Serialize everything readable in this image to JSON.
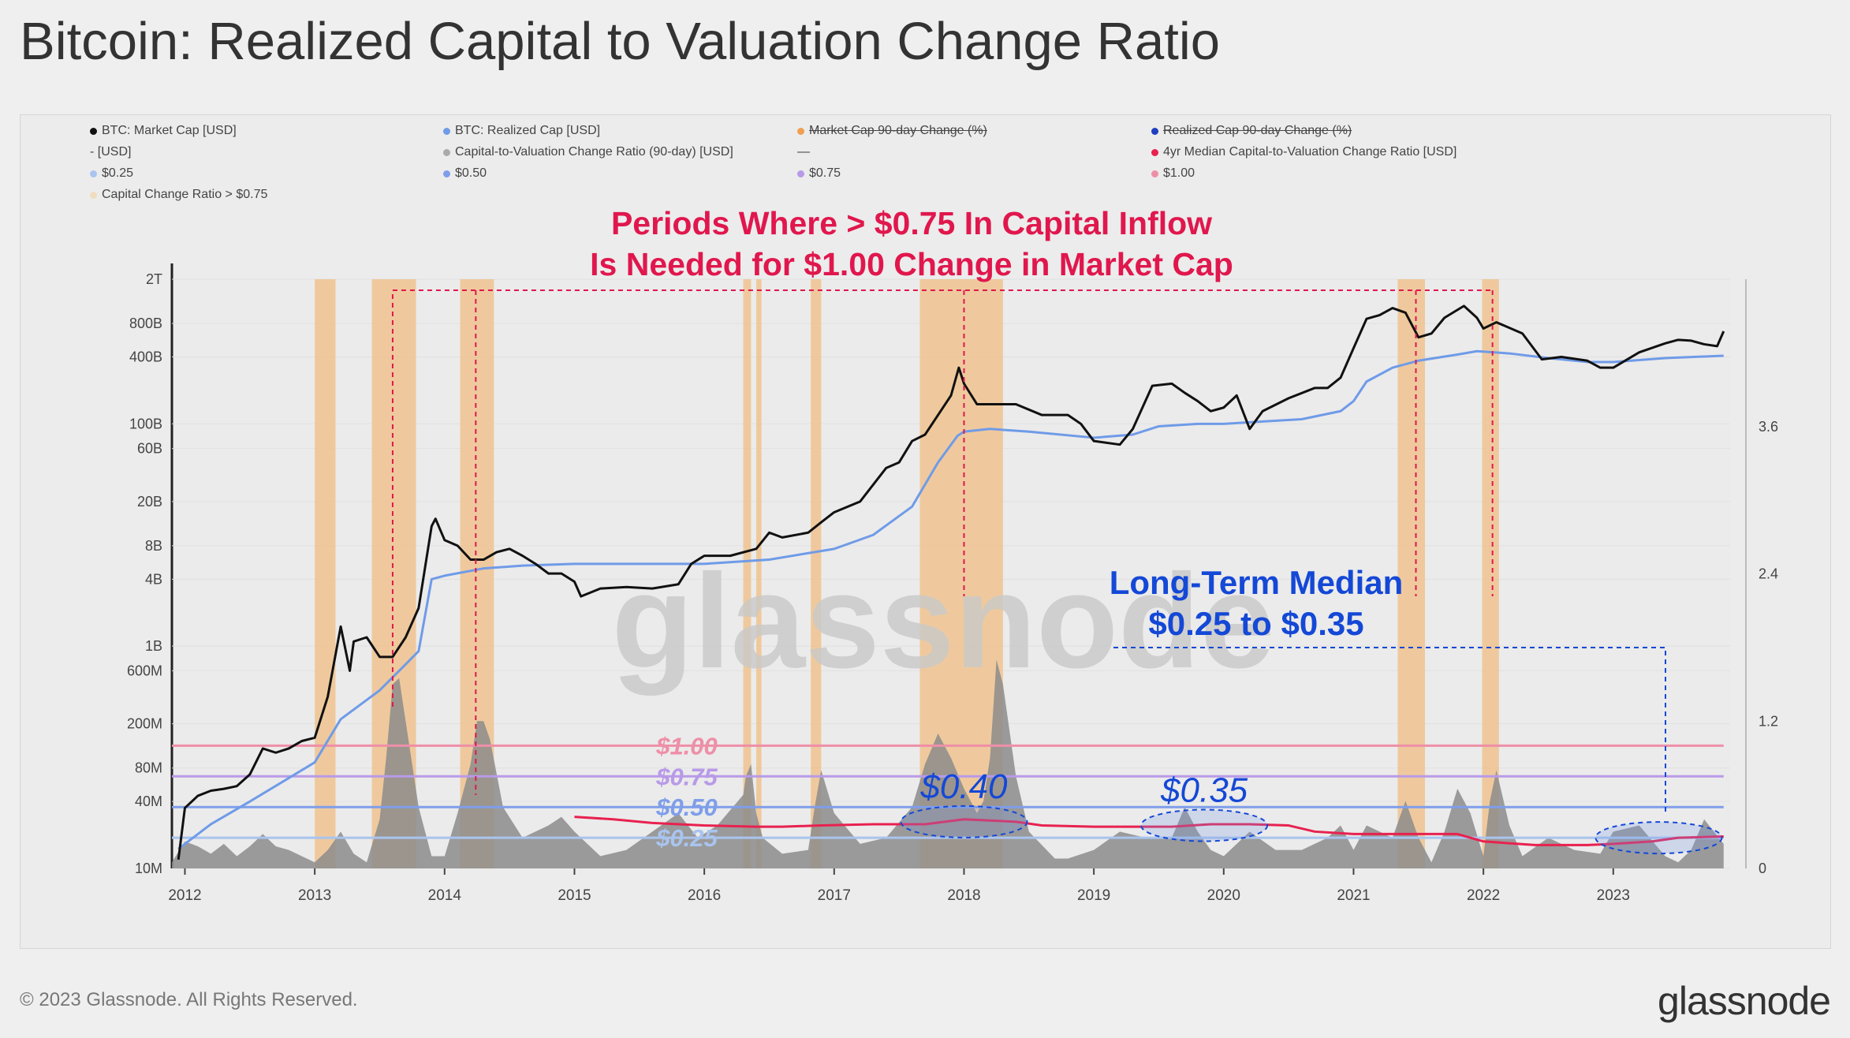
{
  "title": "Bitcoin: Realized Capital to Valuation Change Ratio",
  "footer": {
    "copyright": "© 2023 Glassnode. All Rights Reserved.",
    "logo": "glassnode"
  },
  "watermark": "glassnode",
  "colors": {
    "market_cap": "#111111",
    "realized_cap": "#6f9be8",
    "ratio_fill": "#8c8c8c",
    "median": "#e8214f",
    "band_025": "#a9c4ee",
    "band_050": "#7f9eea",
    "band_075": "#b89ae8",
    "band_100": "#ee8fa8",
    "highlight": "#f0c08a",
    "annotation_red": "#e0174d",
    "annotation_blue": "#1448d6"
  },
  "legend": [
    {
      "label": "BTC: Market Cap [USD]",
      "color": "#111111",
      "struck": false
    },
    {
      "label": "BTC: Realized Cap [USD]",
      "color": "#6f9be8",
      "struck": false
    },
    {
      "label": "Market Cap 90-day Change (%)",
      "color": "#f0a050",
      "struck": true
    },
    {
      "label": "Realized Cap 90-day Change (%)",
      "color": "#2040c0",
      "struck": true
    },
    {
      "label": "- [USD]",
      "color": "",
      "struck": false
    },
    {
      "label": "Capital-to-Valuation Change Ratio (90-day) [USD]",
      "color": "#aaaaaa",
      "struck": false
    },
    {
      "label": "—",
      "color": "",
      "struck": false
    },
    {
      "label": "4yr Median Capital-to-Valuation Change Ratio [USD]",
      "color": "#e8214f",
      "struck": false
    },
    {
      "label": "$0.25",
      "color": "#a9c4ee",
      "struck": false
    },
    {
      "label": "$0.50",
      "color": "#7f9eea",
      "struck": false
    },
    {
      "label": "$0.75",
      "color": "#b89ae8",
      "struck": false
    },
    {
      "label": "$1.00",
      "color": "#ee8fa8",
      "struck": false
    },
    {
      "label": "Capital Change Ratio > $0.75",
      "color": "#f0dcc0",
      "struck": false
    }
  ],
  "annotations": {
    "red_line1": "Periods Where > $0.75 In Capital Inflow",
    "red_line2": "Is Needed for $1.00 Change in Market Cap",
    "blue_line1": "Long-Term Median",
    "blue_line2": "$0.25 to $0.35",
    "label_040": "$0.40",
    "label_035": "$0.35",
    "band_labels": [
      "$1.00",
      "$0.75",
      "$0.50",
      "$0.25"
    ]
  },
  "chart_data": {
    "type": "line",
    "x_axis": {
      "ticks": [
        "2012",
        "2013",
        "2014",
        "2015",
        "2016",
        "2017",
        "2018",
        "2019",
        "2020",
        "2021",
        "2022",
        "2023"
      ],
      "range": [
        2011.9,
        2023.9
      ]
    },
    "y_left": {
      "scale": "log",
      "unit": "USD",
      "ticks": [
        "10M",
        "40M",
        "80M",
        "200M",
        "600M",
        "1B",
        "4B",
        "8B",
        "20B",
        "60B",
        "100B",
        "400B",
        "800B",
        "2T"
      ],
      "range": [
        10000000,
        2000000000000
      ]
    },
    "y_right": {
      "scale": "linear",
      "unit": "USD",
      "ticks": [
        "0",
        "1.2",
        "2.4",
        "3.6"
      ],
      "range": [
        0,
        4.8
      ]
    },
    "series": [
      {
        "name": "BTC: Market Cap [USD]",
        "axis": "left",
        "x": [
          2011.95,
          2012.0,
          2012.1,
          2012.2,
          2012.3,
          2012.4,
          2012.5,
          2012.6,
          2012.7,
          2012.8,
          2012.9,
          2013.0,
          2013.1,
          2013.2,
          2013.27,
          2013.3,
          2013.4,
          2013.5,
          2013.6,
          2013.7,
          2013.8,
          2013.9,
          2013.93,
          2014.0,
          2014.1,
          2014.2,
          2014.3,
          2014.4,
          2014.5,
          2014.6,
          2014.7,
          2014.8,
          2014.9,
          2015.0,
          2015.05,
          2015.2,
          2015.4,
          2015.6,
          2015.8,
          2015.9,
          2016.0,
          2016.2,
          2016.4,
          2016.5,
          2016.6,
          2016.8,
          2016.9,
          2017.0,
          2017.2,
          2017.4,
          2017.5,
          2017.6,
          2017.7,
          2017.8,
          2017.9,
          2017.96,
          2018.0,
          2018.1,
          2018.2,
          2018.4,
          2018.6,
          2018.8,
          2018.9,
          2019.0,
          2019.2,
          2019.3,
          2019.45,
          2019.6,
          2019.7,
          2019.8,
          2019.9,
          2020.0,
          2020.1,
          2020.2,
          2020.3,
          2020.5,
          2020.7,
          2020.8,
          2020.9,
          2021.0,
          2021.1,
          2021.2,
          2021.3,
          2021.4,
          2021.5,
          2021.6,
          2021.7,
          2021.85,
          2021.95,
          2022.0,
          2022.1,
          2022.3,
          2022.45,
          2022.6,
          2022.8,
          2022.9,
          2023.0,
          2023.2,
          2023.4,
          2023.5,
          2023.6,
          2023.7,
          2023.8,
          2023.85
        ],
        "y": [
          12000000.0,
          35000000.0,
          45000000.0,
          50000000.0,
          52000000.0,
          55000000.0,
          70000000.0,
          120000000.0,
          110000000.0,
          120000000.0,
          140000000.0,
          150000000.0,
          350000000.0,
          1500000000.0,
          600000000.0,
          1100000000.0,
          1200000000.0,
          800000000.0,
          800000000.0,
          1200000000.0,
          2200000000.0,
          12000000000.0,
          14000000000.0,
          9000000000.0,
          8000000000.0,
          6000000000.0,
          6000000000.0,
          7000000000.0,
          7500000000.0,
          6500000000.0,
          5500000000.0,
          4500000000.0,
          4500000000.0,
          3800000000.0,
          2800000000.0,
          3300000000.0,
          3400000000.0,
          3300000000.0,
          3600000000.0,
          5500000000.0,
          6500000000.0,
          6500000000.0,
          7500000000.0,
          10500000000.0,
          9500000000.0,
          10500000000.0,
          13000000000.0,
          16000000000.0,
          20000000000.0,
          40000000000.0,
          45000000000.0,
          70000000000.0,
          80000000000.0,
          120000000000.0,
          180000000000.0,
          320000000000.0,
          230000000000.0,
          150000000000.0,
          150000000000.0,
          150000000000.0,
          120000000000.0,
          120000000000.0,
          100000000000.0,
          70000000000.0,
          65000000000.0,
          90000000000.0,
          220000000000.0,
          230000000000.0,
          190000000000.0,
          160000000000.0,
          130000000000.0,
          140000000000.0,
          180000000000.0,
          90000000000.0,
          130000000000.0,
          170000000000.0,
          210000000000.0,
          210000000000.0,
          260000000000.0,
          480000000000.0,
          880000000000.0,
          950000000000.0,
          1100000000000.0,
          1000000000000.0,
          600000000000.0,
          650000000000.0,
          900000000000.0,
          1150000000000.0,
          900000000000.0,
          720000000000.0,
          820000000000.0,
          650000000000.0,
          380000000000.0,
          400000000000.0,
          370000000000.0,
          320000000000.0,
          320000000000.0,
          440000000000.0,
          530000000000.0,
          570000000000.0,
          560000000000.0,
          520000000000.0,
          500000000000.0,
          680000000000.0
        ]
      },
      {
        "name": "BTC: Realized Cap [USD]",
        "axis": "left",
        "x": [
          2011.95,
          2012.2,
          2012.5,
          2012.8,
          2013.0,
          2013.2,
          2013.5,
          2013.8,
          2013.9,
          2014.0,
          2014.3,
          2014.6,
          2015.0,
          2015.5,
          2016.0,
          2016.5,
          2017.0,
          2017.3,
          2017.6,
          2017.8,
          2017.95,
          2018.0,
          2018.2,
          2018.5,
          2019.0,
          2019.3,
          2019.5,
          2019.8,
          2020.0,
          2020.3,
          2020.6,
          2020.9,
          2021.0,
          2021.1,
          2021.3,
          2021.5,
          2021.8,
          2021.95,
          2022.2,
          2022.5,
          2022.8,
          2023.0,
          2023.4,
          2023.85
        ],
        "y": [
          15000000.0,
          25000000.0,
          40000000.0,
          65000000.0,
          90000000.0,
          220000000.0,
          400000000.0,
          900000000.0,
          4000000000.0,
          4300000000.0,
          5000000000.0,
          5300000000.0,
          5500000000.0,
          5500000000.0,
          5500000000.0,
          6000000000.0,
          7500000000.0,
          10000000000.0,
          18000000000.0,
          45000000000.0,
          78000000000.0,
          85000000000.0,
          90000000000.0,
          85000000000.0,
          75000000000.0,
          80000000000.0,
          95000000000.0,
          100000000000.0,
          100000000000.0,
          105000000000.0,
          110000000000.0,
          130000000000.0,
          160000000000.0,
          240000000000.0,
          320000000000.0,
          370000000000.0,
          420000000000.0,
          450000000000.0,
          430000000000.0,
          390000000000.0,
          360000000000.0,
          360000000000.0,
          390000000000.0,
          410000000000.0
        ]
      },
      {
        "name": "Capital-to-Valuation Change Ratio (90-day) [USD]",
        "axis": "right",
        "x": [
          2011.9,
          2012.0,
          2012.1,
          2012.2,
          2012.3,
          2012.4,
          2012.5,
          2012.6,
          2012.7,
          2012.8,
          2012.9,
          2013.0,
          2013.1,
          2013.2,
          2013.3,
          2013.4,
          2013.5,
          2013.55,
          2013.6,
          2013.65,
          2013.7,
          2013.8,
          2013.9,
          2014.0,
          2014.1,
          2014.2,
          2014.25,
          2014.3,
          2014.35,
          2014.45,
          2014.6,
          2014.8,
          2014.9,
          2015.0,
          2015.2,
          2015.4,
          2015.6,
          2015.8,
          2015.95,
          2016.1,
          2016.3,
          2016.32,
          2016.36,
          2016.4,
          2016.45,
          2016.6,
          2016.8,
          2016.85,
          2016.9,
          2017.0,
          2017.2,
          2017.4,
          2017.6,
          2017.7,
          2017.8,
          2017.9,
          2018.0,
          2018.1,
          2018.15,
          2018.2,
          2018.25,
          2018.3,
          2018.4,
          2018.5,
          2018.7,
          2018.8,
          2019.0,
          2019.2,
          2019.4,
          2019.6,
          2019.7,
          2019.8,
          2019.9,
          2020.0,
          2020.2,
          2020.4,
          2020.6,
          2020.8,
          2020.9,
          2021.0,
          2021.1,
          2021.3,
          2021.4,
          2021.5,
          2021.6,
          2021.7,
          2021.8,
          2021.9,
          2022.0,
          2022.05,
          2022.1,
          2022.2,
          2022.3,
          2022.5,
          2022.7,
          2022.9,
          2023.0,
          2023.2,
          2023.4,
          2023.5,
          2023.6,
          2023.7,
          2023.85
        ],
        "y": [
          0.05,
          0.22,
          0.18,
          0.12,
          0.2,
          0.1,
          0.18,
          0.28,
          0.18,
          0.15,
          0.1,
          0.05,
          0.15,
          0.3,
          0.12,
          0.05,
          0.4,
          0.9,
          1.5,
          1.55,
          1.2,
          0.5,
          0.1,
          0.1,
          0.45,
          0.85,
          1.2,
          1.2,
          1.05,
          0.5,
          0.25,
          0.35,
          0.42,
          0.3,
          0.1,
          0.15,
          0.3,
          0.45,
          0.25,
          0.35,
          0.6,
          0.75,
          0.85,
          0.45,
          0.25,
          0.12,
          0.15,
          0.5,
          0.8,
          0.45,
          0.2,
          0.25,
          0.5,
          0.85,
          1.1,
          0.9,
          0.65,
          0.45,
          0.55,
          0.9,
          1.7,
          1.5,
          0.75,
          0.3,
          0.08,
          0.08,
          0.15,
          0.3,
          0.25,
          0.25,
          0.5,
          0.3,
          0.15,
          0.1,
          0.3,
          0.15,
          0.15,
          0.25,
          0.35,
          0.15,
          0.35,
          0.25,
          0.55,
          0.25,
          0.05,
          0.3,
          0.65,
          0.45,
          0.1,
          0.55,
          0.8,
          0.35,
          0.1,
          0.25,
          0.15,
          0.12,
          0.3,
          0.35,
          0.1,
          0.05,
          0.15,
          0.4,
          0.2
        ]
      },
      {
        "name": "4yr Median Capital-to-Valuation Change Ratio [USD]",
        "axis": "right",
        "x": [
          2015.0,
          2015.3,
          2015.6,
          2016.0,
          2016.4,
          2016.6,
          2016.9,
          2017.3,
          2017.7,
          2018.0,
          2018.4,
          2018.6,
          2019.0,
          2019.4,
          2019.6,
          2019.9,
          2020.2,
          2020.5,
          2020.7,
          2021.0,
          2021.4,
          2021.6,
          2021.8,
          2022.0,
          2022.4,
          2022.8,
          2023.0,
          2023.3,
          2023.5,
          2023.85
        ],
        "y": [
          0.42,
          0.4,
          0.37,
          0.35,
          0.34,
          0.34,
          0.35,
          0.36,
          0.36,
          0.4,
          0.38,
          0.35,
          0.34,
          0.34,
          0.34,
          0.36,
          0.36,
          0.35,
          0.3,
          0.28,
          0.28,
          0.28,
          0.28,
          0.22,
          0.19,
          0.19,
          0.2,
          0.22,
          0.25,
          0.26
        ]
      },
      {
        "name": "$1.00",
        "axis": "right",
        "x": [
          2011.9,
          2023.85
        ],
        "y": [
          1.0,
          1.0
        ]
      },
      {
        "name": "$0.75",
        "axis": "right",
        "x": [
          2011.9,
          2023.85
        ],
        "y": [
          0.75,
          0.75
        ]
      },
      {
        "name": "$0.50",
        "axis": "right",
        "x": [
          2011.9,
          2023.85
        ],
        "y": [
          0.5,
          0.5
        ]
      },
      {
        "name": "$0.25",
        "axis": "right",
        "x": [
          2011.9,
          2023.85
        ],
        "y": [
          0.25,
          0.25
        ]
      }
    ],
    "highlight_periods": [
      [
        2013.0,
        2013.16
      ],
      [
        2013.44,
        2013.78
      ],
      [
        2014.12,
        2014.38
      ],
      [
        2016.3,
        2016.36
      ],
      [
        2016.4,
        2016.44
      ],
      [
        2016.82,
        2016.9
      ],
      [
        2017.66,
        2018.3
      ],
      [
        2021.34,
        2021.55
      ],
      [
        2021.99,
        2022.12
      ]
    ],
    "median_ellipses": [
      {
        "label": "$0.40",
        "x": 2018.0,
        "y": 0.38
      },
      {
        "label": "$0.35",
        "x": 2019.85,
        "y": 0.35
      },
      {
        "label": "",
        "x": 2023.35,
        "y": 0.25
      }
    ]
  }
}
